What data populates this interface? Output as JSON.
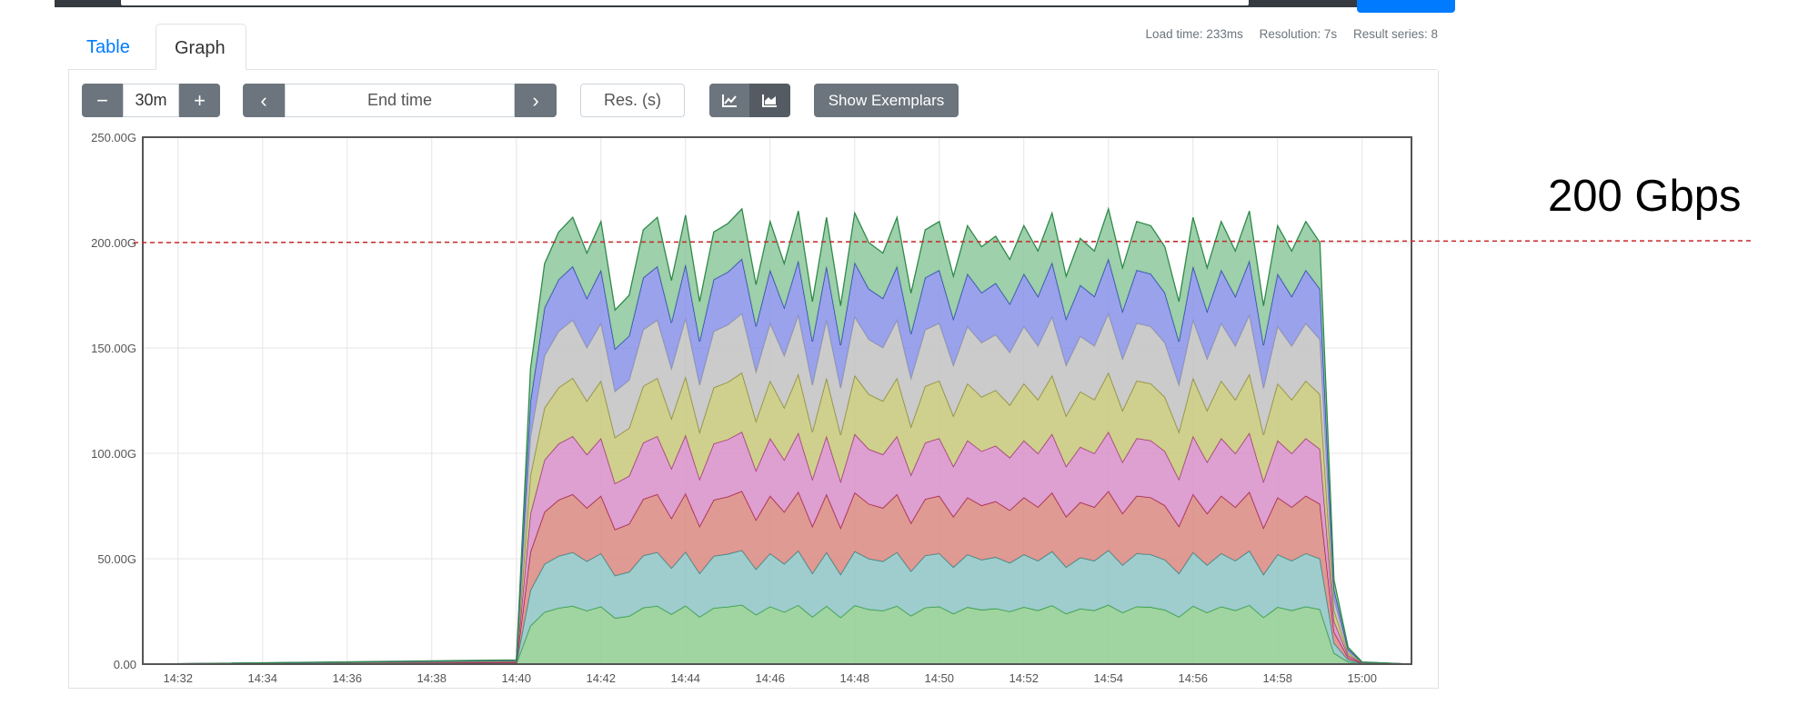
{
  "tabs": {
    "table": "Table",
    "graph": "Graph"
  },
  "stats": {
    "load_time": "Load time: 233ms",
    "resolution": "Resolution: 7s",
    "result_series": "Result series: 8"
  },
  "controls": {
    "range_minus": "−",
    "range_value": "30m",
    "range_plus": "+",
    "prev": "‹",
    "end_time_placeholder": "End time",
    "next": "›",
    "resolution_placeholder": "Res. (s)",
    "show_exemplars": "Show Exemplars"
  },
  "annotation": {
    "text": "200 Gbps",
    "line_color": "#c62828"
  },
  "chart_data": {
    "type": "area",
    "stacked": true,
    "x_unit": "time (HH:MM)",
    "xlim": [
      "14:31:10",
      "15:01:10"
    ],
    "ylim": [
      0,
      250
    ],
    "y_tick_labels": [
      "0.00",
      "50.00G",
      "100.00G",
      "150.00G",
      "200.00G",
      "250.00G"
    ],
    "x_tick_labels": [
      "14:32",
      "14:34",
      "14:36",
      "14:38",
      "14:40",
      "14:42",
      "14:44",
      "14:46",
      "14:48",
      "14:50",
      "14:52",
      "14:54",
      "14:56",
      "14:58",
      "15:00"
    ],
    "grid": true,
    "reference_line": {
      "y": 200,
      "label": "200 Gbps"
    },
    "series_colors": [
      "#8fcc8f",
      "#8ec4c4",
      "#d98880",
      "#d88fc8",
      "#c8c87a",
      "#c2c2c2",
      "#8792e8",
      "#8cc89c"
    ],
    "series_line_colors": [
      "#2f9a3b",
      "#2c8a8a",
      "#a0203c",
      "#a0307f",
      "#8a8a2a",
      "#9a9a9a",
      "#2a3fb0",
      "#2f8a4a"
    ],
    "x": [
      "14:40:00",
      "14:40:20",
      "14:40:40",
      "14:41:00",
      "14:41:20",
      "14:41:40",
      "14:42:00",
      "14:42:20",
      "14:42:40",
      "14:43:00",
      "14:43:20",
      "14:43:40",
      "14:44:00",
      "14:44:20",
      "14:44:40",
      "14:45:00",
      "14:45:20",
      "14:45:40",
      "14:46:00",
      "14:46:20",
      "14:46:40",
      "14:47:00",
      "14:47:20",
      "14:47:40",
      "14:48:00",
      "14:48:20",
      "14:48:40",
      "14:49:00",
      "14:49:20",
      "14:49:40",
      "14:50:00",
      "14:50:20",
      "14:50:40",
      "14:51:00",
      "14:51:20",
      "14:51:40",
      "14:52:00",
      "14:52:20",
      "14:52:40",
      "14:53:00",
      "14:53:20",
      "14:53:40",
      "14:54:00",
      "14:54:20",
      "14:54:40",
      "14:55:00",
      "14:55:20",
      "14:55:40",
      "14:56:00",
      "14:56:20",
      "14:56:40",
      "14:57:00",
      "14:57:20",
      "14:57:40",
      "14:58:00",
      "14:58:20",
      "14:58:40",
      "14:59:00",
      "14:59:20",
      "14:59:40",
      "15:00:00"
    ],
    "totals": [
      2,
      140,
      190,
      205,
      212,
      195,
      210,
      168,
      175,
      206,
      212,
      182,
      213,
      172,
      205,
      209,
      216,
      180,
      210,
      190,
      215,
      172,
      212,
      170,
      214,
      200,
      195,
      212,
      176,
      206,
      210,
      184,
      208,
      198,
      203,
      192,
      208,
      196,
      214,
      184,
      202,
      196,
      216,
      188,
      210,
      208,
      198,
      172,
      212,
      188,
      210,
      196,
      215,
      170,
      208,
      196,
      210,
      200,
      40,
      8,
      1
    ],
    "series_fraction": [
      0.13,
      0.12,
      0.13,
      0.13,
      0.13,
      0.13,
      0.12,
      0.11
    ]
  }
}
